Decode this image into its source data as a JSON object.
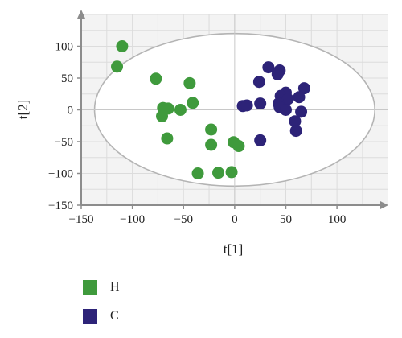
{
  "chart_data": {
    "type": "scatter",
    "xlabel": "t[1]",
    "ylabel": "t[2]",
    "xlim": [
      -150,
      140
    ],
    "ylim": [
      -150,
      150
    ],
    "xticks": [
      -150,
      -100,
      -50,
      0,
      50,
      100
    ],
    "yticks": [
      -150,
      -100,
      -50,
      0,
      50,
      100
    ],
    "grid": true,
    "ellipse": {
      "cx": 0,
      "cy": 0,
      "rx": 137,
      "ry": 120
    },
    "legend_position": "bottom-left",
    "series": [
      {
        "name": "H",
        "color": "#3f9a3c",
        "points": [
          [
            -110,
            100
          ],
          [
            -115,
            68
          ],
          [
            -77,
            49
          ],
          [
            -44,
            42
          ],
          [
            -41,
            11
          ],
          [
            -70,
            3
          ],
          [
            -65,
            2
          ],
          [
            -71,
            -10
          ],
          [
            -53,
            0
          ],
          [
            -66,
            -45
          ],
          [
            -23,
            -31
          ],
          [
            -23,
            -55
          ],
          [
            -36,
            -100
          ],
          [
            -16,
            -99
          ],
          [
            -3,
            -98
          ],
          [
            -1,
            -51
          ],
          [
            4,
            -57
          ]
        ]
      },
      {
        "name": "C",
        "color": "#2d2378",
        "points": [
          [
            33,
            67
          ],
          [
            44,
            62
          ],
          [
            42,
            56
          ],
          [
            24,
            44
          ],
          [
            68,
            34
          ],
          [
            50,
            27
          ],
          [
            45,
            22
          ],
          [
            63,
            20
          ],
          [
            52,
            17
          ],
          [
            8,
            6
          ],
          [
            12,
            7
          ],
          [
            25,
            10
          ],
          [
            43,
            10
          ],
          [
            44,
            4
          ],
          [
            65,
            -3
          ],
          [
            50,
            0
          ],
          [
            59,
            -18
          ],
          [
            60,
            -33
          ],
          [
            25,
            -48
          ]
        ]
      }
    ]
  }
}
